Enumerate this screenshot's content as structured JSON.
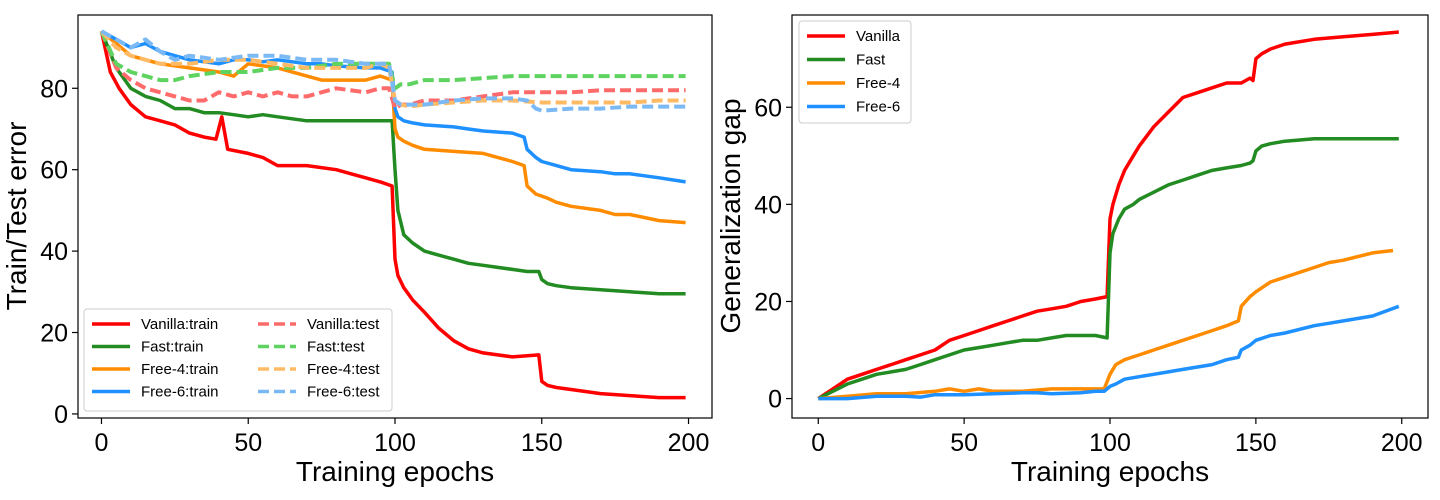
{
  "chart_data": [
    {
      "type": "line",
      "title": "",
      "xlabel": "Training epochs",
      "ylabel": "Train/Test error",
      "xlim": [
        -8,
        208
      ],
      "ylim": [
        -1,
        98
      ],
      "xticks": [
        0,
        50,
        100,
        150,
        200
      ],
      "yticks": [
        0,
        20,
        40,
        60,
        80
      ],
      "legend_position": "lower-left",
      "legend_columns": 2,
      "series": [
        {
          "name": "Vanilla:train",
          "color": "#ff0000",
          "style": "solid",
          "x": [
            0,
            3,
            6,
            10,
            15,
            20,
            25,
            30,
            35,
            39,
            41,
            43,
            50,
            55,
            60,
            70,
            80,
            85,
            90,
            95,
            99,
            100,
            101,
            103,
            106,
            110,
            115,
            120,
            125,
            130,
            140,
            149,
            150,
            152,
            155,
            160,
            170,
            180,
            190,
            199
          ],
          "y": [
            94,
            84,
            80,
            76,
            73,
            72,
            71,
            69,
            68,
            67.5,
            73,
            65,
            64,
            63,
            61,
            61,
            60,
            59,
            58,
            57,
            56,
            38,
            34,
            31,
            28,
            25,
            21,
            18,
            16,
            15,
            14,
            14.5,
            8,
            7,
            6.5,
            6,
            5,
            4.5,
            4,
            4
          ]
        },
        {
          "name": "Fast:train",
          "color": "#228b22",
          "style": "solid",
          "x": [
            0,
            5,
            10,
            15,
            20,
            25,
            30,
            35,
            40,
            45,
            50,
            55,
            60,
            70,
            80,
            90,
            95,
            99,
            100,
            101,
            103,
            106,
            110,
            115,
            120,
            125,
            130,
            135,
            140,
            145,
            149,
            150,
            152,
            155,
            160,
            170,
            180,
            190,
            199
          ],
          "y": [
            94,
            85,
            80,
            78,
            77,
            75,
            75,
            74,
            74,
            73.5,
            73,
            73.5,
            73,
            72,
            72,
            72,
            72,
            72,
            60,
            50,
            44,
            42,
            40,
            39,
            38,
            37,
            36.5,
            36,
            35.5,
            35,
            35,
            33,
            32,
            31.5,
            31,
            30.5,
            30,
            29.5,
            29.5
          ]
        },
        {
          "name": "Free-4:train",
          "color": "#ff8c00",
          "style": "solid",
          "x": [
            0,
            5,
            10,
            15,
            20,
            30,
            40,
            45,
            50,
            60,
            70,
            75,
            80,
            90,
            95,
            99,
            100,
            101,
            103,
            106,
            110,
            120,
            130,
            140,
            144,
            145,
            148,
            150,
            152,
            155,
            160,
            170,
            175,
            180,
            190,
            199
          ],
          "y": [
            94,
            91,
            88,
            87,
            86,
            85,
            84,
            83,
            86,
            85,
            83,
            82,
            82,
            82,
            83,
            82,
            70,
            68,
            67,
            66,
            65,
            64.5,
            64,
            62,
            61,
            56,
            54,
            53.5,
            53,
            52,
            51,
            50,
            49,
            49,
            47.5,
            47
          ]
        },
        {
          "name": "Free-6:train",
          "color": "#1e90ff",
          "style": "solid",
          "x": [
            0,
            5,
            10,
            15,
            20,
            25,
            30,
            40,
            45,
            50,
            55,
            60,
            65,
            70,
            75,
            80,
            90,
            95,
            99,
            100,
            101,
            103,
            106,
            110,
            120,
            125,
            130,
            140,
            144,
            145,
            148,
            150,
            155,
            160,
            170,
            175,
            180,
            190,
            199
          ],
          "y": [
            94,
            92,
            90,
            91,
            89,
            88,
            87,
            86,
            87,
            87,
            86.5,
            87,
            86.5,
            86,
            86,
            85.5,
            85,
            85,
            84,
            75,
            73,
            72,
            71.5,
            71,
            70.5,
            70,
            69.5,
            69,
            68,
            65,
            63,
            62,
            61,
            60,
            59.5,
            59,
            59,
            58,
            57
          ]
        },
        {
          "name": "Vanilla:test",
          "color": "#ff6b6b",
          "style": "dashed",
          "x": [
            0,
            5,
            10,
            15,
            20,
            25,
            30,
            35,
            40,
            45,
            50,
            55,
            60,
            65,
            70,
            75,
            80,
            90,
            95,
            98,
            100,
            102,
            105,
            110,
            120,
            130,
            140,
            150,
            160,
            170,
            180,
            190,
            199
          ],
          "y": [
            94,
            85,
            82,
            80,
            79,
            78,
            77,
            77,
            79,
            78,
            79,
            78,
            79,
            78,
            78,
            79,
            80,
            79,
            80,
            80,
            75,
            76,
            76,
            77,
            77,
            78,
            79,
            79,
            79,
            79.5,
            79.5,
            79.5,
            79.5
          ]
        },
        {
          "name": "Fast:test",
          "color": "#5fd35f",
          "style": "dashed",
          "x": [
            0,
            5,
            10,
            15,
            20,
            25,
            30,
            40,
            50,
            60,
            70,
            80,
            90,
            95,
            98,
            100,
            102,
            105,
            110,
            120,
            130,
            140,
            150,
            160,
            170,
            180,
            190,
            199
          ],
          "y": [
            94,
            86,
            84,
            83,
            82,
            82,
            83,
            84,
            84,
            85,
            85,
            86,
            86,
            86,
            86,
            80,
            81,
            81,
            82,
            82,
            82.5,
            83,
            83,
            83,
            83,
            83,
            83,
            83
          ]
        },
        {
          "name": "Free-4:test",
          "color": "#ffba66",
          "style": "dashed",
          "x": [
            0,
            5,
            10,
            15,
            20,
            30,
            40,
            50,
            60,
            70,
            80,
            90,
            95,
            98,
            100,
            102,
            105,
            110,
            120,
            130,
            140,
            150,
            160,
            170,
            180,
            190,
            199
          ],
          "y": [
            94,
            90,
            88,
            87,
            86,
            86,
            87,
            87,
            86,
            85,
            85,
            85,
            86,
            85,
            77,
            76,
            75.5,
            76,
            76.5,
            77,
            77,
            76.5,
            76.5,
            76.5,
            76.5,
            77,
            77
          ]
        },
        {
          "name": "Free-6:test",
          "color": "#7bb9f5",
          "style": "dashed",
          "x": [
            0,
            5,
            10,
            15,
            20,
            25,
            30,
            40,
            50,
            60,
            70,
            80,
            90,
            95,
            98,
            100,
            102,
            105,
            110,
            120,
            130,
            140,
            145,
            148,
            150,
            160,
            170,
            180,
            190,
            199
          ],
          "y": [
            94,
            92,
            90,
            92,
            89,
            87,
            88,
            87,
            88,
            88,
            87,
            87,
            86,
            86,
            86,
            77,
            76,
            76,
            76,
            77,
            77.5,
            77.5,
            77,
            75,
            74.5,
            75,
            75,
            75.5,
            75.5,
            75.5
          ]
        }
      ]
    },
    {
      "type": "line",
      "title": "",
      "xlabel": "Training epochs",
      "ylabel": "Generalization gap",
      "xlim": [
        -9,
        209
      ],
      "ylim": [
        -4,
        79
      ],
      "xticks": [
        0,
        50,
        100,
        150,
        200
      ],
      "yticks": [
        0,
        20,
        40,
        60
      ],
      "legend_position": "upper-left",
      "legend_columns": 1,
      "series": [
        {
          "name": "Vanilla",
          "color": "#ff0000",
          "style": "solid",
          "x": [
            0,
            5,
            10,
            15,
            20,
            25,
            30,
            35,
            40,
            45,
            50,
            55,
            60,
            65,
            70,
            75,
            80,
            85,
            90,
            95,
            99,
            100,
            101,
            103,
            105,
            108,
            110,
            115,
            120,
            125,
            130,
            135,
            140,
            145,
            148,
            149,
            150,
            152,
            155,
            160,
            170,
            180,
            190,
            199
          ],
          "y": [
            0,
            2,
            4,
            5,
            6,
            7,
            8,
            9,
            10,
            12,
            13,
            14,
            15,
            16,
            17,
            18,
            18.5,
            19,
            20,
            20.5,
            21,
            37,
            40,
            44,
            47,
            50,
            52,
            56,
            59,
            62,
            63,
            64,
            65,
            65,
            66,
            65.5,
            70,
            71,
            72,
            73,
            74,
            74.5,
            75,
            75.5
          ]
        },
        {
          "name": "Fast",
          "color": "#228b22",
          "style": "solid",
          "x": [
            0,
            5,
            10,
            15,
            20,
            25,
            30,
            35,
            40,
            45,
            50,
            55,
            60,
            65,
            70,
            75,
            80,
            85,
            90,
            95,
            99,
            100,
            101,
            103,
            105,
            108,
            110,
            115,
            120,
            125,
            130,
            135,
            140,
            145,
            148,
            149,
            150,
            152,
            155,
            160,
            170,
            180,
            190,
            199
          ],
          "y": [
            0,
            1.5,
            3,
            4,
            5,
            5.5,
            6,
            7,
            8,
            9,
            10,
            10.5,
            11,
            11.5,
            12,
            12,
            12.5,
            13,
            13,
            13,
            12.5,
            30,
            34,
            37,
            39,
            40,
            41,
            42.5,
            44,
            45,
            46,
            47,
            47.5,
            48,
            48.5,
            49,
            51,
            52,
            52.5,
            53,
            53.5,
            53.5,
            53.5,
            53.5
          ]
        },
        {
          "name": "Free-4",
          "color": "#ff8c00",
          "style": "solid",
          "x": [
            0,
            10,
            20,
            30,
            40,
            45,
            50,
            55,
            60,
            70,
            80,
            90,
            95,
            98,
            100,
            102,
            105,
            110,
            115,
            120,
            125,
            130,
            135,
            140,
            144,
            145,
            148,
            150,
            155,
            160,
            170,
            175,
            180,
            190,
            197
          ],
          "y": [
            0,
            0.5,
            1,
            1,
            1.5,
            2,
            1.5,
            2,
            1.5,
            1.5,
            2,
            2,
            2,
            2,
            5,
            7,
            8,
            9,
            10,
            11,
            12,
            13,
            14,
            15,
            16,
            19,
            21,
            22,
            24,
            25,
            27,
            28,
            28.5,
            30,
            30.5
          ]
        },
        {
          "name": "Free-6",
          "color": "#1e90ff",
          "style": "solid",
          "x": [
            0,
            10,
            20,
            30,
            35,
            40,
            50,
            60,
            70,
            75,
            80,
            90,
            95,
            98,
            100,
            102,
            105,
            110,
            115,
            120,
            125,
            130,
            135,
            140,
            144,
            145,
            148,
            150,
            155,
            160,
            170,
            175,
            180,
            190,
            199
          ],
          "y": [
            0,
            0,
            0.5,
            0.5,
            0.3,
            0.8,
            0.8,
            1,
            1.2,
            1.2,
            1,
            1.2,
            1.5,
            1.5,
            2.5,
            3,
            4,
            4.5,
            5,
            5.5,
            6,
            6.5,
            7,
            8,
            8.5,
            10,
            11,
            12,
            13,
            13.5,
            15,
            15.5,
            16,
            17,
            19
          ]
        }
      ]
    }
  ]
}
